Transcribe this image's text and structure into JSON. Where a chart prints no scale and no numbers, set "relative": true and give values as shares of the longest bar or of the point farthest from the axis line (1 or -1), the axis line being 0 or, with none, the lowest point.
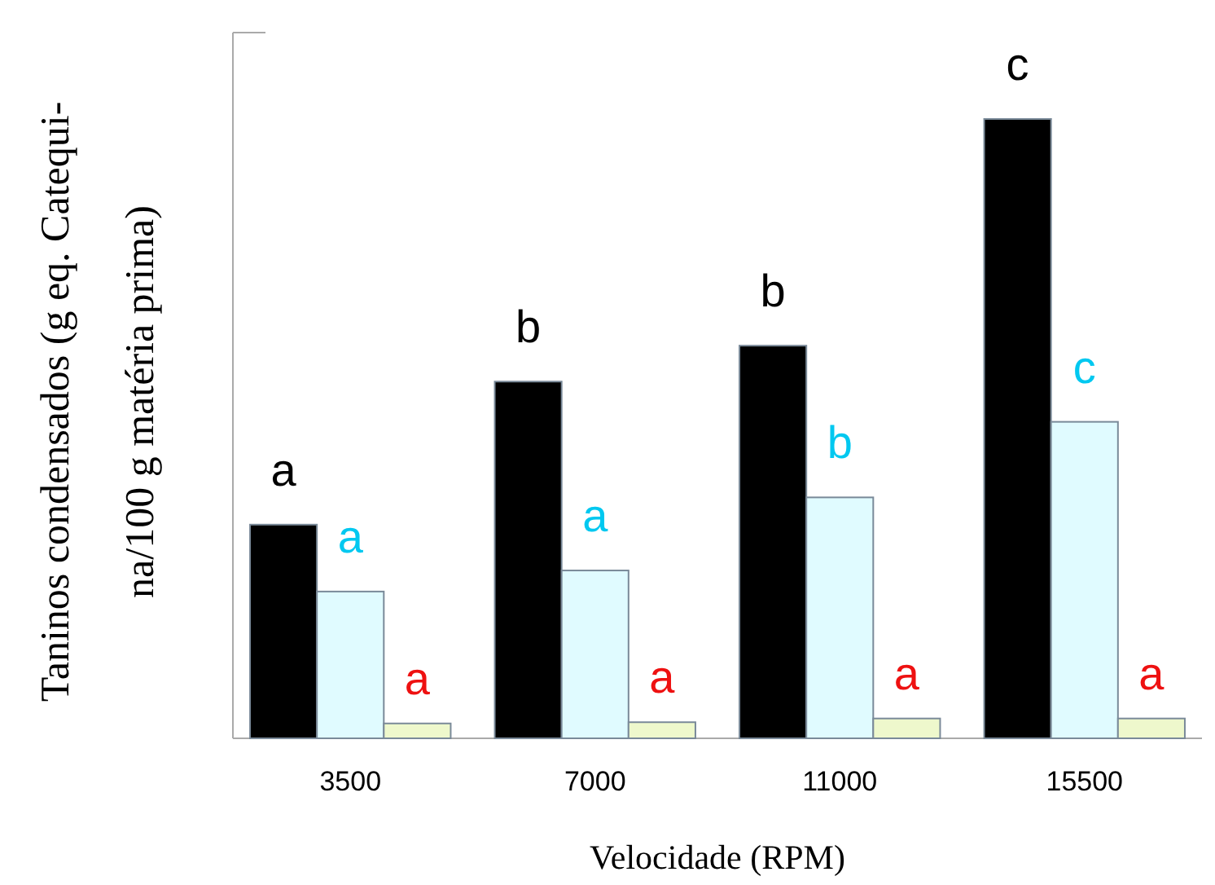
{
  "chart_data": {
    "type": "bar",
    "relative": true,
    "xlabel": "Velocidade (RPM)",
    "ylabel": "Taninos condensados (g eq. Catequi-\nna/100 g matéria prima)",
    "categories": [
      "3500",
      "7000",
      "11000",
      "15500"
    ],
    "series": [
      {
        "color": "#000000",
        "values": [
          0.345,
          0.576,
          0.634,
          1
        ]
      },
      {
        "color": "#e0fbff",
        "values": [
          0.237,
          0.271,
          0.389,
          0.511
        ]
      },
      {
        "color": "#eef8cc",
        "values": [
          0.024,
          0.026,
          0.032,
          0.032
        ]
      }
    ],
    "annotations": [
      "a",
      "a",
      "a",
      "b",
      "a",
      "a",
      "b",
      "b",
      "a",
      "c",
      "c",
      "a"
    ]
  }
}
